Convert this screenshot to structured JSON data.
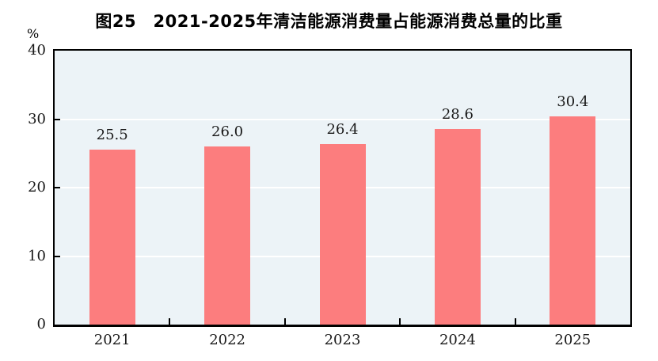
{
  "chart": {
    "title": "图25　2021-2025年清洁能源消费量占能源消费总量的比重",
    "unit_label": "%"
  },
  "chart_data": {
    "type": "bar",
    "title": "图25　2021-2025年清洁能源消费量占能源消费总量的比重",
    "categories": [
      "2021",
      "2022",
      "2023",
      "2024",
      "2025"
    ],
    "values": [
      25.5,
      26.0,
      26.4,
      28.6,
      30.4
    ],
    "value_labels": [
      "25.5",
      "26.0",
      "26.4",
      "28.6",
      "30.4"
    ],
    "xlabel": "",
    "ylabel": "%",
    "ylim": [
      0,
      40
    ],
    "ytick_values": [
      0,
      10,
      20,
      30,
      40
    ],
    "ytick_labels": [
      "0",
      "10",
      "20",
      "30",
      "40"
    ],
    "gridline_values": [
      10,
      20,
      30
    ],
    "grid": true,
    "legend": false,
    "bar_color": "#FC7D7E",
    "plot_background": "#ECF3F7",
    "grid_color": "#FFFFFF",
    "axis_color": "#000000",
    "label_position": "above-bars"
  }
}
